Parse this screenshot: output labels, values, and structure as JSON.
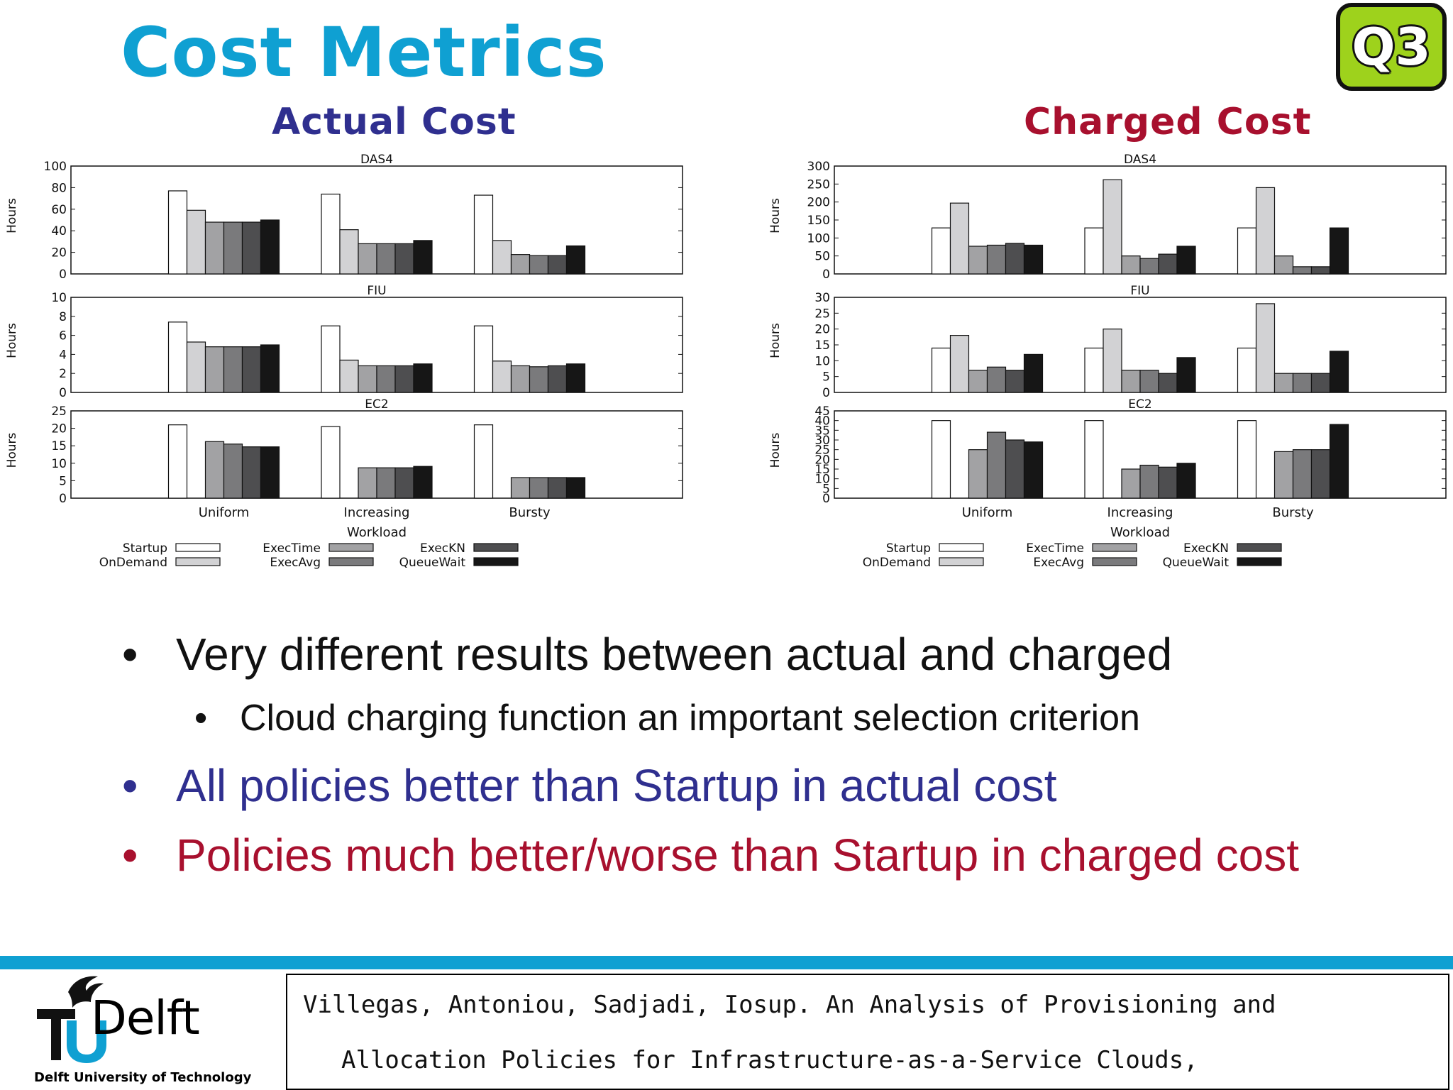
{
  "slide": {
    "title": "Cost Metrics",
    "badge": "Q3",
    "actual_title": "Actual Cost",
    "charged_title": "Charged Cost",
    "colors": {
      "title": "#0fa0d2",
      "actual": "#2f2f8f",
      "charged": "#a8102e",
      "black": "#111111",
      "badge": "#9ed21c"
    },
    "bullets": [
      {
        "text": "Very different results between actual and charged",
        "level": 1,
        "color": "#111111"
      },
      {
        "text": "Cloud charging function an important selection criterion",
        "level": 2,
        "color": "#111111"
      },
      {
        "text": "All policies better than Startup in actual cost",
        "level": 1,
        "color": "#2f2f8f"
      },
      {
        "text": "Policies much better/worse than Startup in charged cost",
        "level": 1,
        "color": "#a8102e"
      }
    ],
    "logo": {
      "name": "TUDelft",
      "subtitle": "Delft University of Technology"
    },
    "citation": [
      "Villegas, Antoniou, Sadjadi, Iosup. An Analysis of Provisioning and",
      "Allocation Policies for Infrastructure-as-a-Service Clouds,"
    ]
  },
  "chart_data": [
    {
      "type": "bar",
      "title": "Actual Cost",
      "xlabel": "Workload",
      "ylabel": "Hours",
      "categories": [
        "Uniform",
        "Increasing",
        "Bursty"
      ],
      "legend": [
        "Startup",
        "OnDemand",
        "ExecTime",
        "ExecAvg",
        "ExecKN",
        "QueueWait"
      ],
      "series_colors": [
        "#ffffff",
        "#d2d2d4",
        "#a2a2a4",
        "#7a7a7c",
        "#4e4e50",
        "#161616"
      ],
      "subplots": [
        {
          "name": "DAS4",
          "ylim": [
            0,
            100
          ],
          "yticks": [
            0,
            20,
            40,
            60,
            80,
            100
          ],
          "values": [
            [
              77,
              59,
              48,
              48,
              48,
              50
            ],
            [
              74,
              41,
              28,
              28,
              28,
              31
            ],
            [
              73,
              31,
              18,
              17,
              17,
              26
            ]
          ]
        },
        {
          "name": "FIU",
          "ylim": [
            0,
            10
          ],
          "yticks": [
            0,
            2,
            4,
            6,
            8,
            10
          ],
          "values": [
            [
              7.4,
              5.3,
              4.8,
              4.8,
              4.8,
              5.0
            ],
            [
              7.0,
              3.4,
              2.8,
              2.8,
              2.8,
              3.0
            ],
            [
              7.0,
              3.3,
              2.8,
              2.7,
              2.8,
              3.0
            ]
          ]
        },
        {
          "name": "EC2",
          "ylim": [
            0,
            25
          ],
          "yticks": [
            0,
            5,
            10,
            15,
            20,
            25
          ],
          "values": [
            [
              21,
              null,
              16.2,
              15.5,
              14.7,
              14.7
            ],
            [
              20.5,
              null,
              8.7,
              8.7,
              8.7,
              9.1
            ],
            [
              21,
              null,
              5.9,
              5.9,
              5.9,
              5.9
            ]
          ]
        }
      ]
    },
    {
      "type": "bar",
      "title": "Charged Cost",
      "xlabel": "Workload",
      "ylabel": "Hours",
      "categories": [
        "Uniform",
        "Increasing",
        "Bursty"
      ],
      "legend": [
        "Startup",
        "OnDemand",
        "ExecTime",
        "ExecAvg",
        "ExecKN",
        "QueueWait"
      ],
      "series_colors": [
        "#ffffff",
        "#d2d2d4",
        "#a2a2a4",
        "#7a7a7c",
        "#4e4e50",
        "#161616"
      ],
      "subplots": [
        {
          "name": "DAS4",
          "ylim": [
            0,
            300
          ],
          "yticks": [
            0,
            50,
            100,
            150,
            200,
            250,
            300
          ],
          "values": [
            [
              128,
              197,
              77,
              80,
              85,
              80
            ],
            [
              128,
              262,
              50,
              43,
              55,
              77
            ],
            [
              128,
              240,
              50,
              20,
              20,
              128
            ]
          ]
        },
        {
          "name": "FIU",
          "ylim": [
            0,
            30
          ],
          "yticks": [
            0,
            5,
            10,
            15,
            20,
            25,
            30
          ],
          "values": [
            [
              14,
              18,
              7,
              8,
              7,
              12
            ],
            [
              14,
              20,
              7,
              7,
              6,
              11
            ],
            [
              14,
              28,
              6,
              6,
              6,
              13
            ]
          ]
        },
        {
          "name": "EC2",
          "ylim": [
            0,
            45
          ],
          "yticks": [
            0,
            5,
            10,
            15,
            20,
            25,
            30,
            35,
            40,
            45
          ],
          "values": [
            [
              40,
              null,
              25,
              34,
              30,
              29
            ],
            [
              40,
              null,
              15,
              17,
              16,
              18
            ],
            [
              40,
              null,
              24,
              25,
              25,
              38
            ]
          ]
        }
      ]
    }
  ]
}
